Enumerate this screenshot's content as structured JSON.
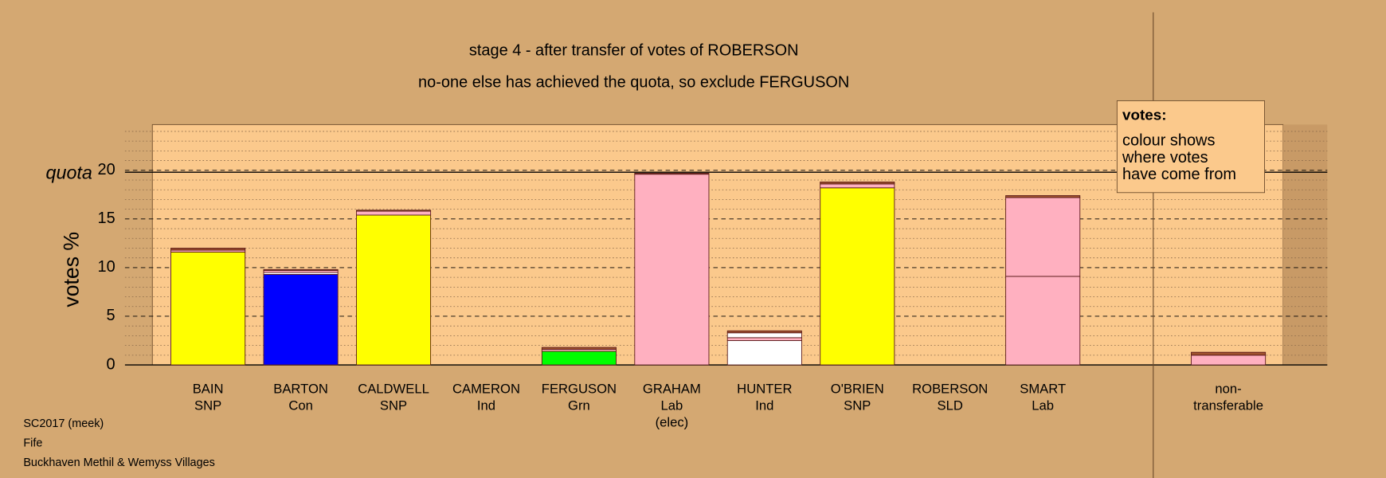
{
  "chart_data": {
    "type": "stacked-bar",
    "title": "stage 4 - after transfer of votes of ROBERSON",
    "subtitle": "no-one else has achieved the quota, so exclude FERGUSON",
    "ylabel": "votes %",
    "quota_label": "quota",
    "quota": 19.8,
    "ylim": [
      0,
      24.7
    ],
    "yticks": [
      0,
      5,
      10,
      15,
      20
    ],
    "yminor": [
      1,
      2,
      3,
      4,
      6,
      7,
      8,
      9,
      11,
      12,
      13,
      14,
      16,
      17,
      18,
      19,
      21,
      22,
      23,
      24
    ],
    "categories": [
      [
        "BAIN",
        "SNP"
      ],
      [
        "BARTON",
        "Con"
      ],
      [
        "CALDWELL",
        "SNP"
      ],
      [
        "CAMERON",
        "Ind"
      ],
      [
        "FERGUSON",
        "Grn"
      ],
      [
        "GRAHAM",
        "Lab",
        "(elec)"
      ],
      [
        "HUNTER",
        "Ind"
      ],
      [
        "O'BRIEN",
        "SNP"
      ],
      [
        "ROBERSON",
        "SLD"
      ],
      [
        "SMART",
        "Lab"
      ],
      null,
      [
        "non-",
        "transferable"
      ]
    ],
    "stacks": [
      [
        {
          "value": 11.6,
          "color": "#ffff00"
        },
        {
          "value": 0.2,
          "color": "#ffb0c0"
        },
        {
          "value": 0.2,
          "color": "#a0522d"
        }
      ],
      [
        {
          "value": 9.3,
          "color": "#0000ff"
        },
        {
          "value": 0.2,
          "color": "#ffffff"
        },
        {
          "value": 0.2,
          "color": "#ffb0c0"
        },
        {
          "value": 0.1,
          "color": "#a0522d"
        }
      ],
      [
        {
          "value": 15.4,
          "color": "#ffff00"
        },
        {
          "value": 0.4,
          "color": "#ffb0c0"
        },
        {
          "value": 0.1,
          "color": "#a0522d"
        }
      ],
      [],
      [
        {
          "value": 1.4,
          "color": "#00ff00"
        },
        {
          "value": 0.2,
          "color": "#ffb0c0"
        },
        {
          "value": 0.2,
          "color": "#a0522d"
        }
      ],
      [
        {
          "value": 19.6,
          "color": "#ffb0c0"
        },
        {
          "value": 0.1,
          "color": "#a0522d"
        }
      ],
      [
        {
          "value": 2.5,
          "color": "#ffffff"
        },
        {
          "value": 0.3,
          "color": "#ffb0c0"
        },
        {
          "value": 0.5,
          "color": "#ffffff"
        },
        {
          "value": 0.2,
          "color": "#a0522d"
        }
      ],
      [
        {
          "value": 18.2,
          "color": "#ffff00"
        },
        {
          "value": 0.4,
          "color": "#ffb0c0"
        },
        {
          "value": 0.2,
          "color": "#a0522d"
        }
      ],
      [],
      [
        {
          "value": 9.1,
          "color": "#ffb0c0"
        },
        {
          "value": 8.1,
          "color": "#ffb0c0"
        },
        {
          "value": 0.2,
          "color": "#a0522d"
        }
      ],
      [],
      [
        {
          "value": 1.0,
          "color": "#ffb0c0"
        },
        {
          "value": 0.3,
          "color": "#a0522d"
        }
      ]
    ],
    "legend": {
      "title": "votes:",
      "lines": [
        "colour shows",
        "where votes",
        "have come from"
      ]
    },
    "footer": [
      "SC2017 (meek)",
      "Fife",
      "Buckhaven Methil & Wemyss Villages"
    ]
  }
}
